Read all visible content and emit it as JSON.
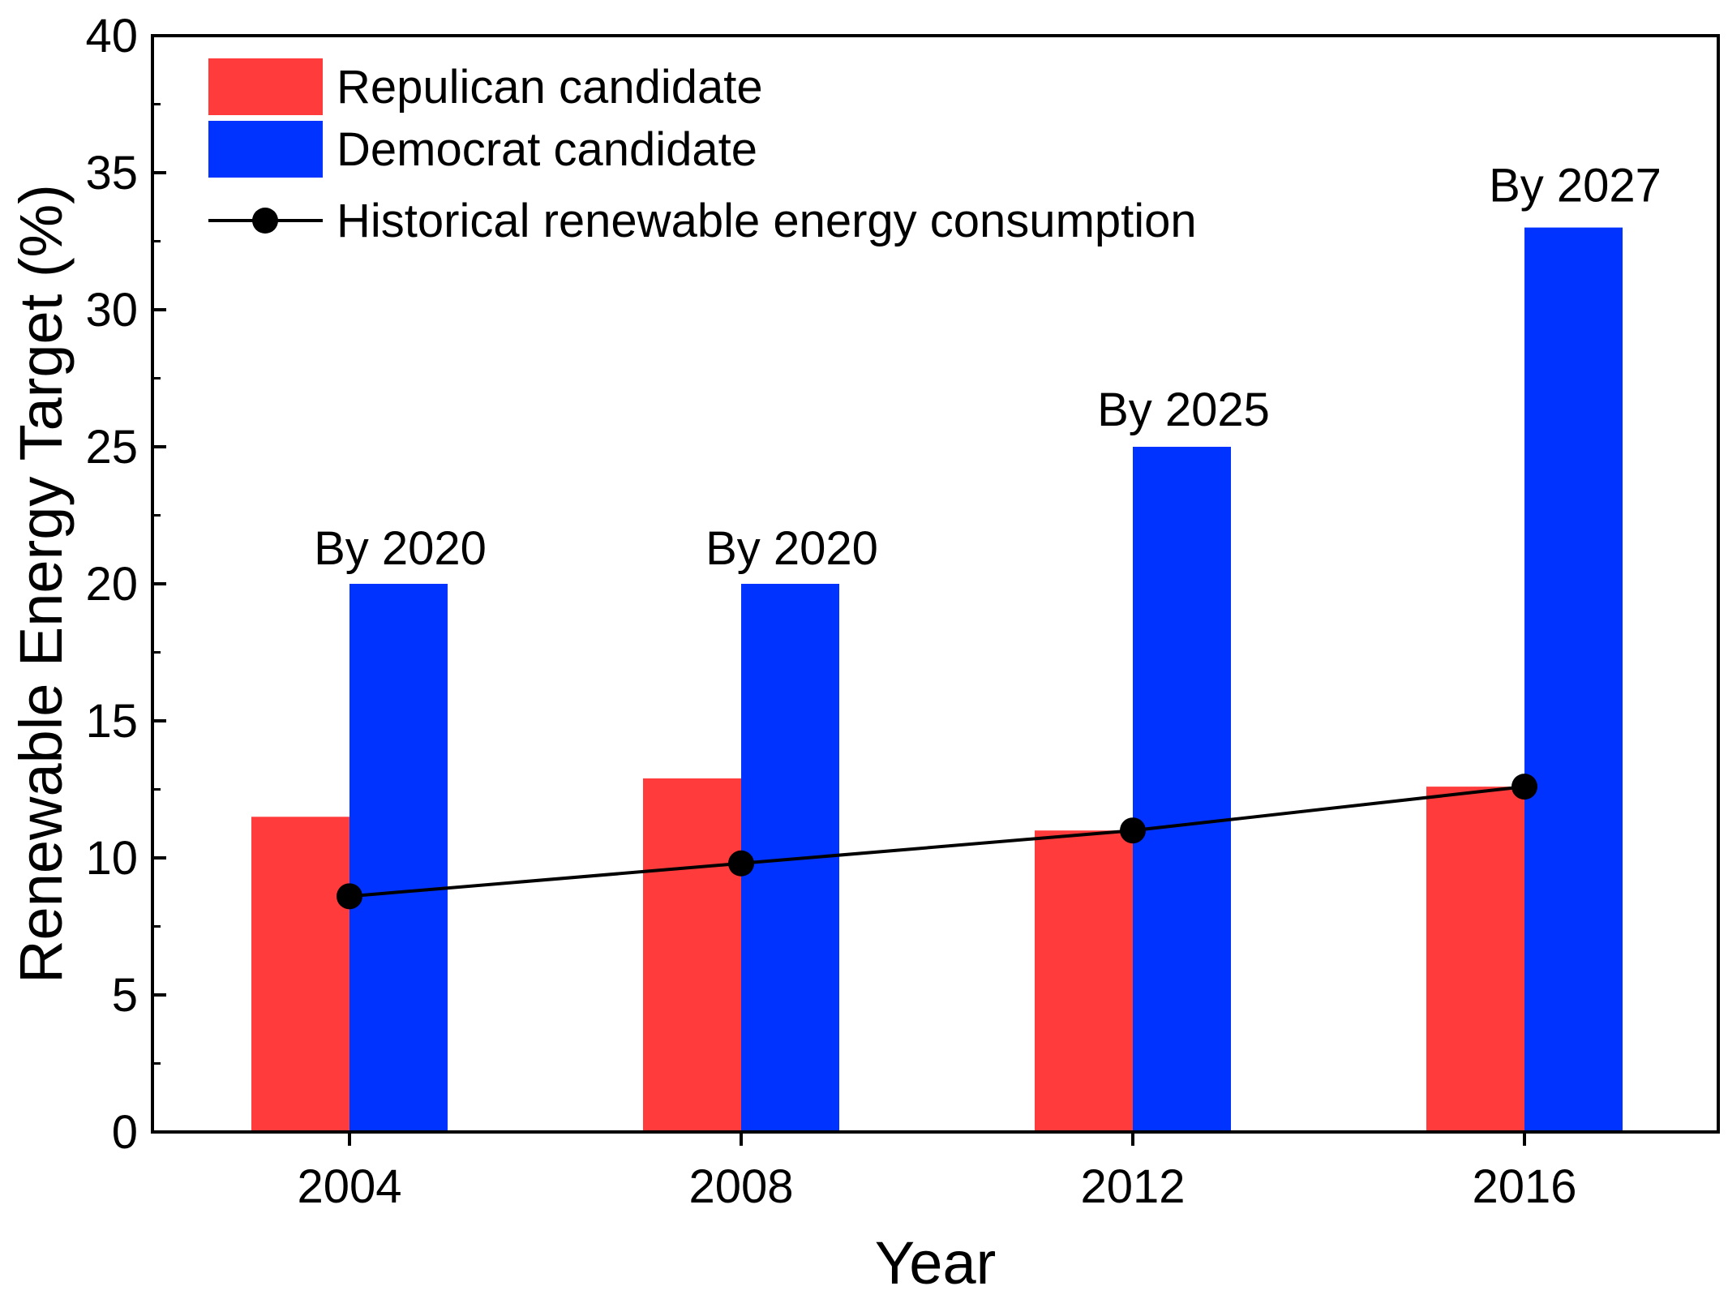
{
  "chart_data": {
    "type": "bar",
    "title": "",
    "xlabel": "Year",
    "ylabel": "Renewable Energy Target (%)",
    "categories": [
      "2004",
      "2008",
      "2012",
      "2016"
    ],
    "ylim": [
      0,
      40
    ],
    "yticks": [
      0,
      5,
      10,
      15,
      20,
      25,
      30,
      35,
      40
    ],
    "series": [
      {
        "name": "Repulican candidate",
        "kind": "bar",
        "color": "#ff3b3b",
        "values": [
          11.5,
          12.9,
          11.0,
          12.6
        ]
      },
      {
        "name": "Democrat candidate",
        "kind": "bar",
        "color": "#0033ff",
        "values": [
          20,
          20,
          25,
          33
        ]
      },
      {
        "name": "Historical renewable energy consumption",
        "kind": "line",
        "color": "#000000",
        "values": [
          8.6,
          9.8,
          11.0,
          12.6
        ]
      }
    ],
    "annotations": [
      {
        "category": "2004",
        "series": "Democrat candidate",
        "text": "By 2020"
      },
      {
        "category": "2008",
        "series": "Democrat candidate",
        "text": "By 2020"
      },
      {
        "category": "2012",
        "series": "Democrat candidate",
        "text": "By 2025"
      },
      {
        "category": "2016",
        "series": "Democrat candidate",
        "text": "By 2027"
      }
    ],
    "legend_position": "top-left",
    "grid": false
  }
}
